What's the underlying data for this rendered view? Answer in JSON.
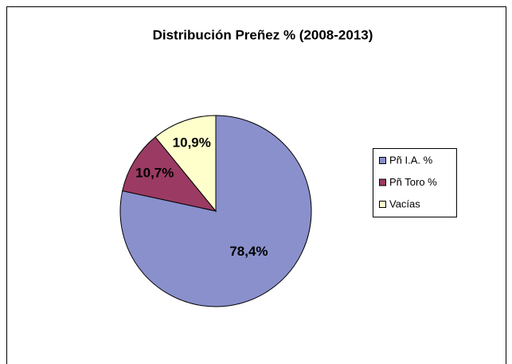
{
  "chart_data": {
    "type": "pie",
    "title": "Distribución Preñez % (2008-2013)",
    "categories": [
      "Pñ I.A. %",
      "Pñ Toro %",
      "Vacías"
    ],
    "values": [
      78.4,
      10.7,
      10.9
    ],
    "value_labels": [
      "78,4%",
      "10,7%",
      "10,9%"
    ],
    "colors": [
      "#8990cc",
      "#9b3b63",
      "#ffffcc"
    ],
    "legend": "right"
  }
}
